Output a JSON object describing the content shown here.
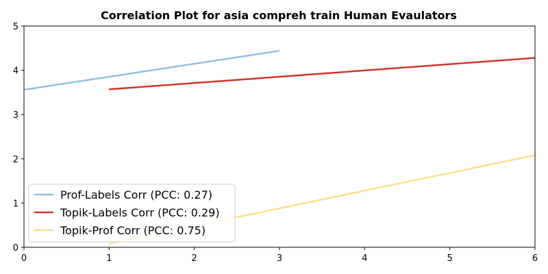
{
  "chart_data": {
    "type": "line",
    "title": "Correlation Plot for asia compreh train Human Evaulators",
    "xlabel": "",
    "ylabel": "",
    "xlim": [
      0,
      6
    ],
    "ylim": [
      0,
      5
    ],
    "xticks": [
      "0",
      "1",
      "2",
      "3",
      "4",
      "5",
      "6"
    ],
    "yticks": [
      "0",
      "1",
      "2",
      "3",
      "4",
      "5"
    ],
    "grid": false,
    "legend_position": "lower-left",
    "series": [
      {
        "name": "Prof-Labels Corr (PCC: 0.27)",
        "color": "#92c0da",
        "x": [
          0,
          3
        ],
        "y": [
          3.56,
          4.44
        ]
      },
      {
        "name": "Topik-Labels Corr (PCC: 0.29)",
        "color": "#d1352b",
        "x": [
          1,
          6
        ],
        "y": [
          3.57,
          4.28
        ]
      },
      {
        "name": "Topik-Prof Corr (PCC: 0.75)",
        "color": "#fbe08f",
        "x": [
          1,
          6
        ],
        "y": [
          0.08,
          2.08
        ]
      }
    ]
  }
}
